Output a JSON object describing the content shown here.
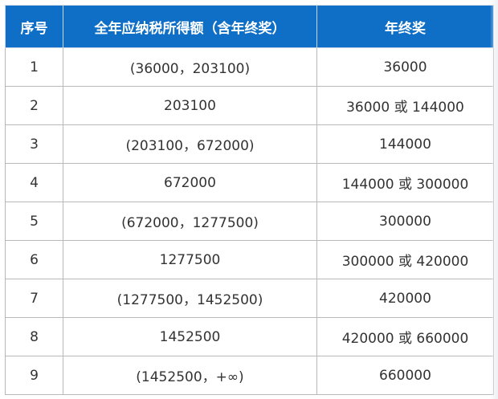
{
  "table": {
    "headers": [
      "序号",
      "全年应纳税所得额（含年终奖）",
      "年终奖"
    ],
    "rows": [
      [
        "1",
        "(36000，203100)",
        "36000"
      ],
      [
        "2",
        "203100",
        "36000 或 144000"
      ],
      [
        "3",
        "(203100，672000)",
        "144000"
      ],
      [
        "4",
        "672000",
        "144000 或 300000"
      ],
      [
        "5",
        "(672000，1277500)",
        "300000"
      ],
      [
        "6",
        "1277500",
        "300000 或 420000"
      ],
      [
        "7",
        "(1277500，1452500)",
        "420000"
      ],
      [
        "8",
        "1452500",
        "420000 或 660000"
      ],
      [
        "9",
        "(1452500，+∞)",
        "660000"
      ]
    ]
  },
  "colors": {
    "header_bg": "#0f6fc6",
    "header_text": "#ffffff",
    "cell_text": "#333333",
    "border": "#b8b8b8"
  }
}
